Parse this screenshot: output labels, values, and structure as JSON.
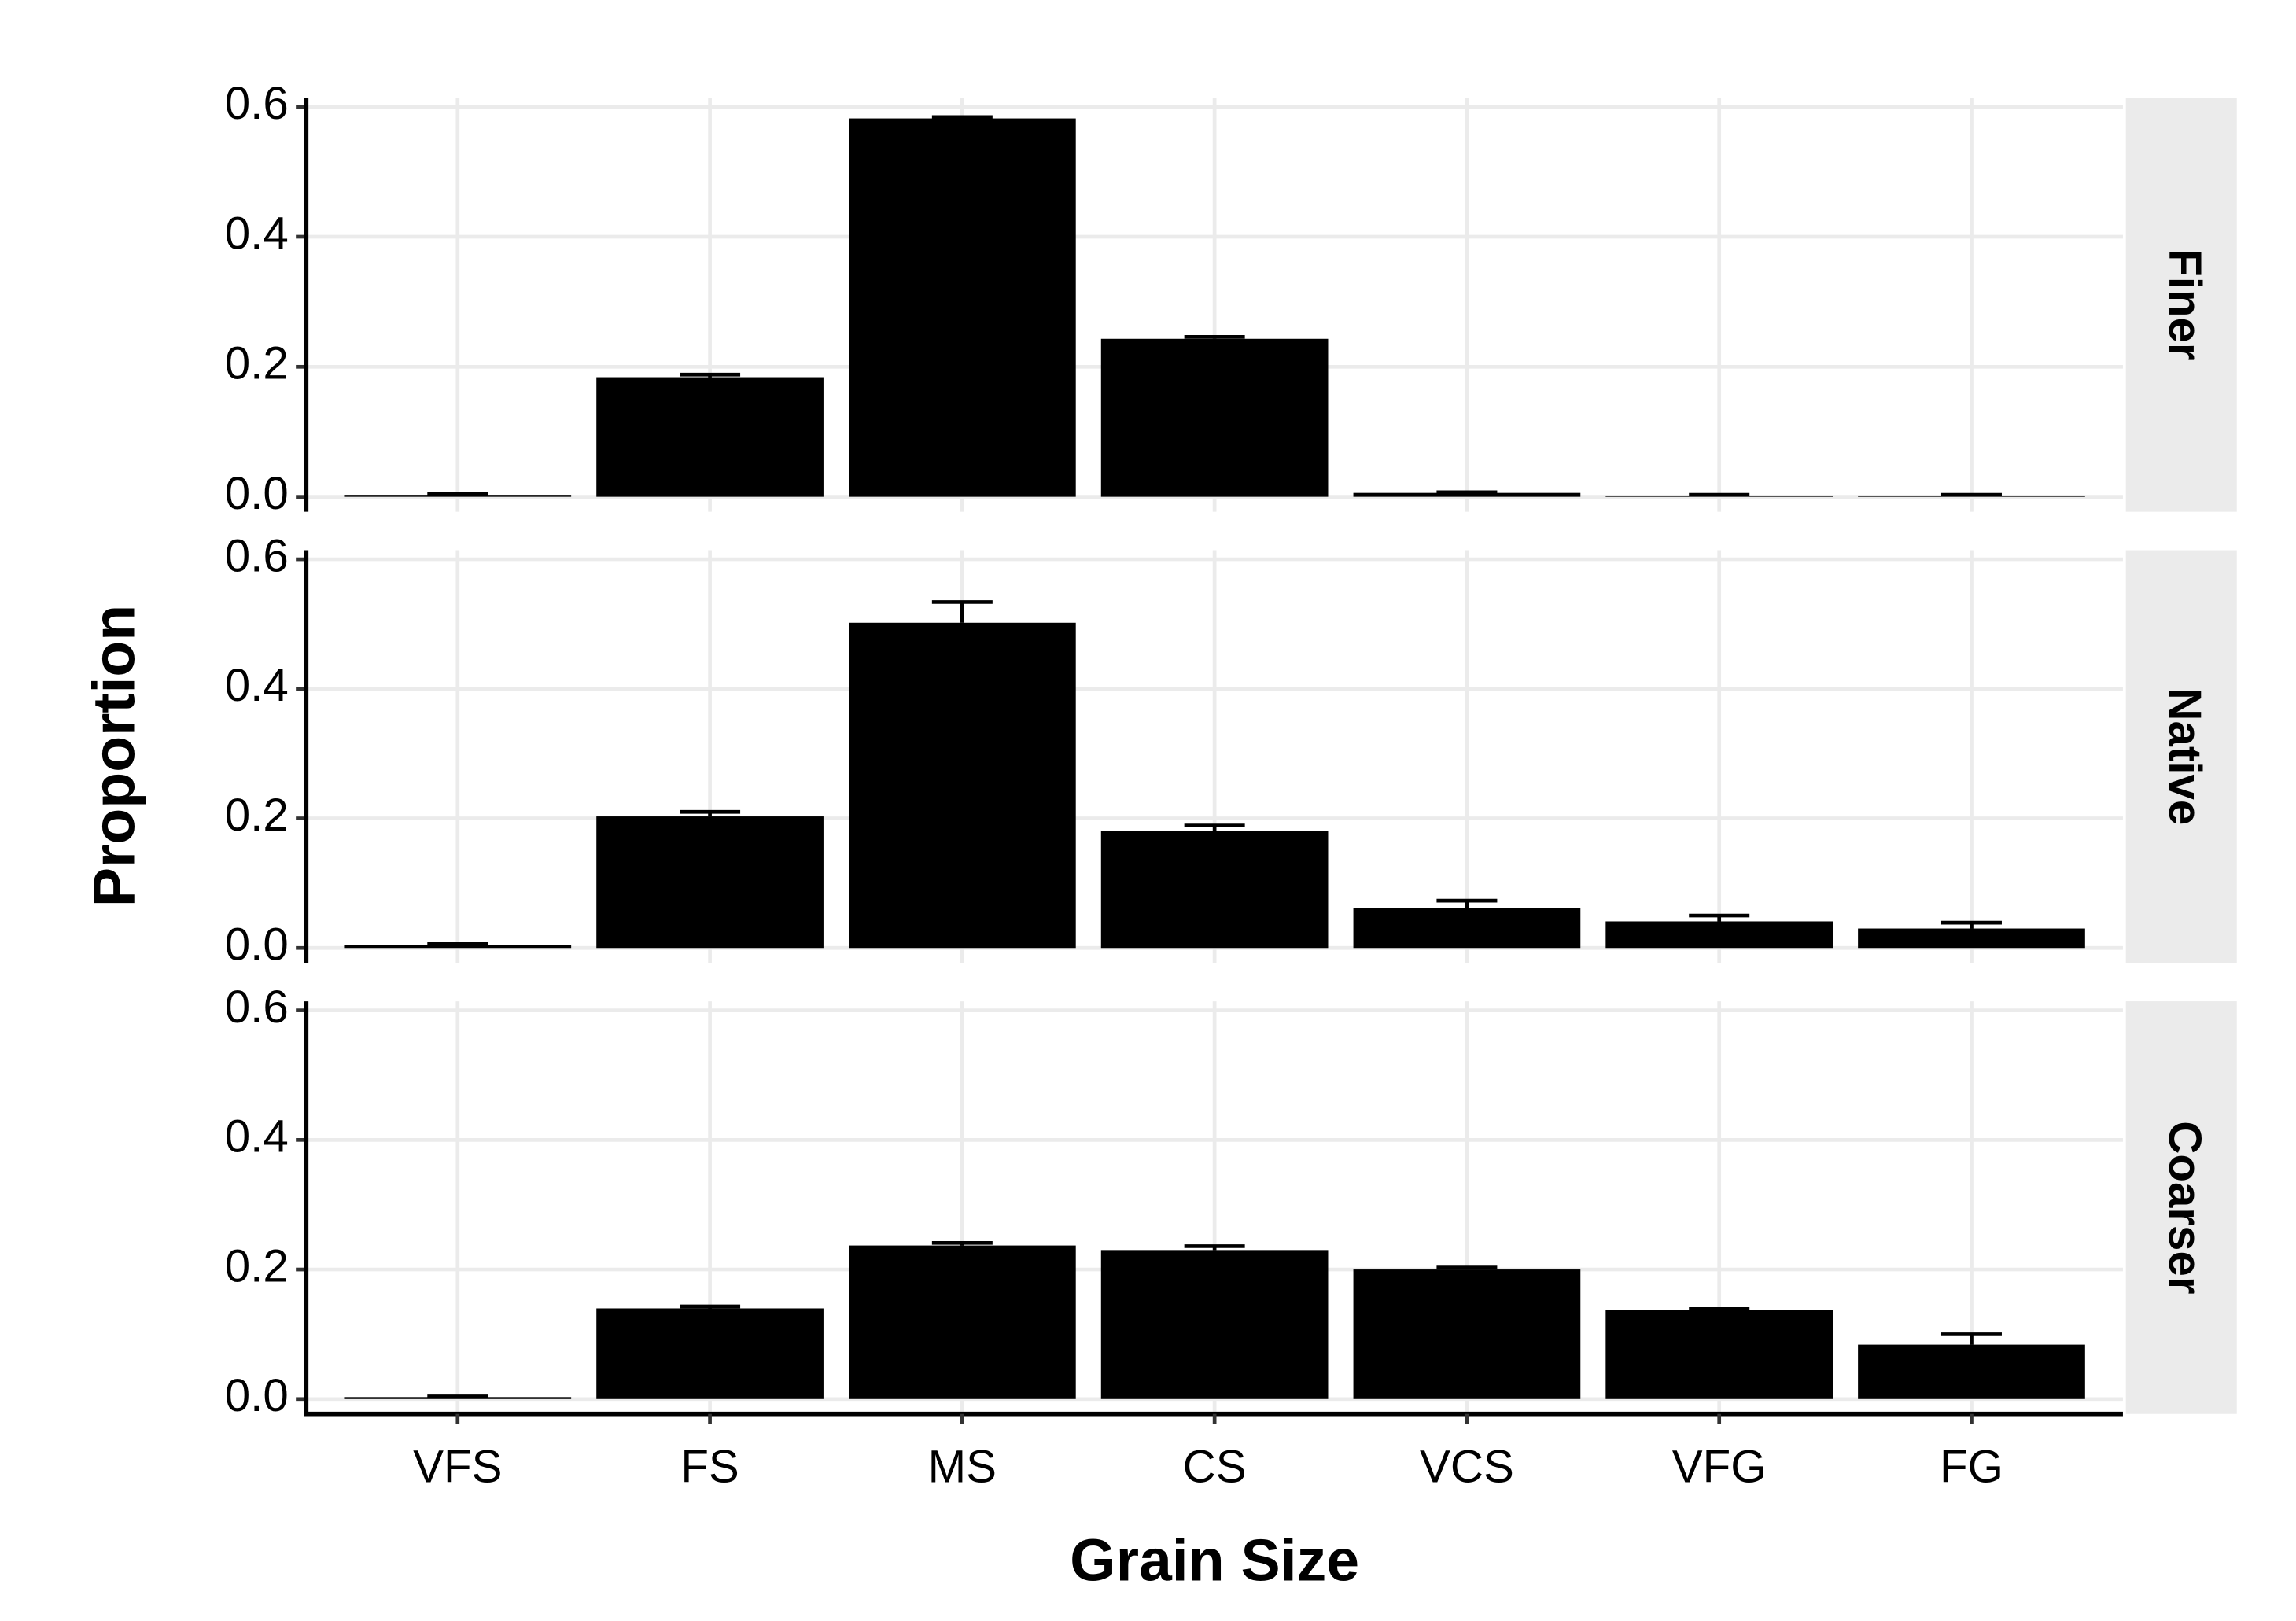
{
  "x_label": "Grain Size",
  "y_label": "Proportion",
  "chart_data": [
    {
      "type": "bar",
      "facet": "Finer",
      "color": "#000000",
      "grid": true,
      "values": [
        0.003,
        0.184,
        0.582,
        0.243,
        0.006,
        0.002,
        0.002
      ],
      "errors": [
        0.001,
        0.004,
        0.002,
        0.003,
        0.001,
        0.001,
        0.001
      ],
      "ylim": [
        -0.023,
        0.614
      ],
      "yticks": [
        {
          "value": 0,
          "label": "0.0"
        },
        0.2,
        0.4,
        0.6
      ]
    },
    {
      "type": "bar",
      "facet": "Native",
      "color": "#000000",
      "grid": true,
      "values": [
        0.005,
        0.203,
        0.502,
        0.18,
        0.062,
        0.041,
        0.03
      ],
      "errors": [
        0.001,
        0.007,
        0.032,
        0.009,
        0.011,
        0.009,
        0.009
      ],
      "ylim": [
        -0.023,
        0.614
      ],
      "yticks": [
        {
          "value": 0,
          "label": "0.0"
        },
        0.2,
        0.4,
        0.6
      ]
    },
    {
      "type": "bar",
      "facet": "Coarser",
      "color": "#000000",
      "grid": true,
      "categories": [
        "VFS",
        "FS",
        "MS",
        "CS",
        "VCS",
        "VFG",
        "FG"
      ],
      "values": [
        0.003,
        0.14,
        0.237,
        0.23,
        0.2,
        0.137,
        0.084
      ],
      "errors": [
        0.001,
        0.003,
        0.004,
        0.006,
        0.003,
        0.002,
        0.016
      ],
      "ylim": [
        -0.023,
        0.614
      ],
      "yticks": [
        {
          "value": 0,
          "label": "0.0"
        },
        0.2,
        0.4,
        0.6
      ]
    }
  ]
}
